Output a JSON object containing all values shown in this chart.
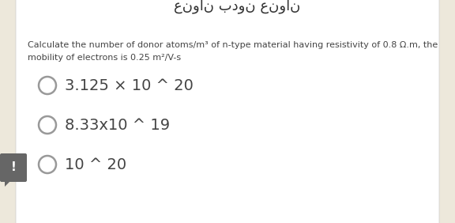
{
  "bg_color": "#ede8db",
  "card_color": "#ffffff",
  "arabic_text": "عنوان بدون عنوان",
  "question_line1": "Calculate the number of donor atoms/m³ of n-type material having resistivity of 0.8 Ω.m, the",
  "question_line2": "mobility of electrons is 0.25 m²/V-s",
  "options": [
    "3.125 × 10 ^ 20",
    "8.33x10 ^ 19",
    "10 ^ 20"
  ],
  "circle_color": "#999999",
  "text_color": "#444444",
  "question_color": "#444444",
  "option_fontsize": 14,
  "question_fontsize": 8,
  "arabic_fontsize": 13,
  "alert_box_color": "#666666"
}
